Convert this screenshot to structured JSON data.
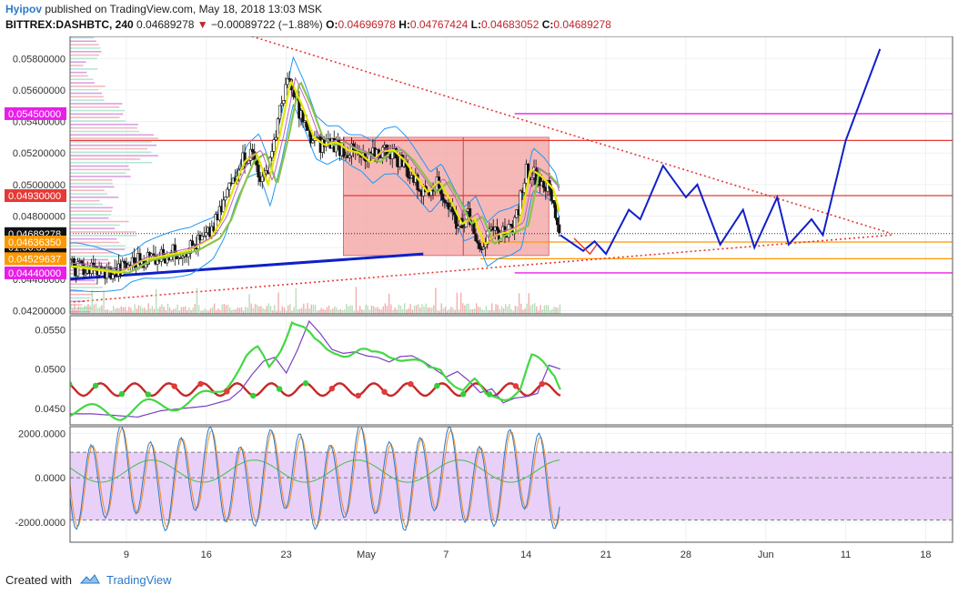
{
  "header": {
    "author": "Hyipov",
    "published": "published on TradingView.com, May 18, 2018 13:03 MSK",
    "symbol": "BITTREX:DASHBTC, 240",
    "last": "0.04689278",
    "change": "−0.00089722 (−1.88%)",
    "ohlc": [
      {
        "label": "O:",
        "value": "0.04696978"
      },
      {
        "label": "H:",
        "value": "0.04767424"
      },
      {
        "label": "L:",
        "value": "0.04683052"
      },
      {
        "label": "C:",
        "value": "0.04689278"
      }
    ]
  },
  "footer": {
    "created": "Created with",
    "brand": "TradingView"
  },
  "colors": {
    "up_candle": "#ffffff",
    "down_candle": "#111111",
    "bb": "#2196f3",
    "fast_ma": "#e6e600",
    "slow_ma": "#8bc34a",
    "magenta": "#e91ee9",
    "red": "#e53935",
    "orange": "#ff9800",
    "blue": "#1020c8",
    "zone": "#f4a0a0",
    "osc_band": "#e4c8f8"
  },
  "chart_data": [
    {
      "type": "line",
      "pane": "price",
      "x_ticks": [
        "9",
        "16",
        "23",
        "May",
        "7",
        "14",
        "21",
        "28",
        "Jun",
        "11",
        "18"
      ],
      "y_ticks": [
        "0.04200000",
        "0.04400000",
        "0.04600000",
        "0.04800000",
        "0.05000000",
        "0.05200000",
        "0.05400000",
        "0.05600000",
        "0.05800000"
      ],
      "ylim": [
        0.0418,
        0.0594
      ],
      "price_markers": [
        {
          "value": "0.05450000",
          "price": 0.0545,
          "color": "#e91ee9"
        },
        {
          "value": "0.04930000",
          "price": 0.0493,
          "color": "#e53935"
        },
        {
          "value": "0.04689278",
          "price": 0.04689,
          "color": "#111111"
        },
        {
          "value": "01:56:39",
          "price": 0.04605,
          "color": "#111111"
        },
        {
          "value": "0.04636350",
          "price": 0.04636,
          "color": "#ff9800"
        },
        {
          "value": "0.04529637",
          "price": 0.0453,
          "color": "#ff9800"
        },
        {
          "value": "0.04440000",
          "price": 0.0444,
          "color": "#e91ee9"
        }
      ],
      "close_series": [
        {
          "day": 4,
          "price": 0.0448
        },
        {
          "day": 6,
          "price": 0.0446
        },
        {
          "day": 8,
          "price": 0.0444
        },
        {
          "day": 10,
          "price": 0.0452
        },
        {
          "day": 12,
          "price": 0.0455
        },
        {
          "day": 14,
          "price": 0.0458
        },
        {
          "day": 16,
          "price": 0.0466
        },
        {
          "day": 17,
          "price": 0.0478
        },
        {
          "day": 18,
          "price": 0.0498
        },
        {
          "day": 19,
          "price": 0.0515
        },
        {
          "day": 20,
          "price": 0.052
        },
        {
          "day": 21,
          "price": 0.05
        },
        {
          "day": 22,
          "price": 0.053
        },
        {
          "day": 23,
          "price": 0.0566
        },
        {
          "day": 24,
          "price": 0.055
        },
        {
          "day": 25,
          "price": 0.053
        },
        {
          "day": 26,
          "price": 0.0525
        },
        {
          "day": 27,
          "price": 0.0527
        },
        {
          "day": 28,
          "price": 0.0522
        },
        {
          "day": 29,
          "price": 0.052
        },
        {
          "day": 30,
          "price": 0.0514
        },
        {
          "day": 31,
          "price": 0.0521
        },
        {
          "day": 32,
          "price": 0.0522
        },
        {
          "day": 33,
          "price": 0.0515
        },
        {
          "day": 34,
          "price": 0.0505
        },
        {
          "day": 35,
          "price": 0.0495
        },
        {
          "day": 36,
          "price": 0.0502
        },
        {
          "day": 37,
          "price": 0.049
        },
        {
          "day": 38,
          "price": 0.0475
        },
        {
          "day": 39,
          "price": 0.048
        },
        {
          "day": 40,
          "price": 0.0462
        },
        {
          "day": 41,
          "price": 0.0468
        },
        {
          "day": 42,
          "price": 0.047
        },
        {
          "day": 43,
          "price": 0.0474
        },
        {
          "day": 44,
          "price": 0.051
        },
        {
          "day": 45,
          "price": 0.0505
        },
        {
          "day": 46,
          "price": 0.0497
        },
        {
          "day": 47,
          "price": 0.0469
        }
      ],
      "zone": {
        "day_start": 28,
        "day_end": 46,
        "price_high": 0.053,
        "price_low": 0.0455
      },
      "h_levels": [
        {
          "price": 0.0545,
          "color": "#e91ee9",
          "day_start": 43,
          "day_end": 100
        },
        {
          "price": 0.0528,
          "color": "#e53935",
          "day_start": 0,
          "day_end": 100
        },
        {
          "price": 0.0493,
          "color": "#e53935",
          "day_start": 28,
          "day_end": 100
        },
        {
          "price": 0.04636,
          "color": "#ff9800",
          "day_start": 40,
          "day_end": 100
        },
        {
          "price": 0.0453,
          "color": "#ff9800",
          "day_start": 40,
          "day_end": 100
        },
        {
          "price": 0.0444,
          "color": "#e91ee9",
          "day_start": 43,
          "day_end": 100
        }
      ],
      "trend_lines": [
        {
          "style": "dotted",
          "color": "#e53935",
          "points": [
            {
              "day": 20,
              "price": 0.0594
            },
            {
              "day": 76,
              "price": 0.0469
            }
          ]
        },
        {
          "style": "dotted",
          "color": "#e53935",
          "points": [
            {
              "day": 0,
              "price": 0.0423
            },
            {
              "day": 76,
              "price": 0.0468
            }
          ]
        },
        {
          "style": "solid",
          "color": "#1020c8",
          "points": [
            {
              "day": 0,
              "price": 0.0438
            },
            {
              "day": 35,
              "price": 0.0456
            }
          ]
        }
      ],
      "projection": [
        {
          "day": 47,
          "price": 0.0468
        },
        {
          "day": 49,
          "price": 0.0458
        },
        {
          "day": 50,
          "price": 0.0464
        },
        {
          "day": 51,
          "price": 0.0456
        },
        {
          "day": 53,
          "price": 0.0484
        },
        {
          "day": 54,
          "price": 0.0478
        },
        {
          "day": 56,
          "price": 0.0512
        },
        {
          "day": 58,
          "price": 0.0492
        },
        {
          "day": 59,
          "price": 0.05
        },
        {
          "day": 61,
          "price": 0.0462
        },
        {
          "day": 63,
          "price": 0.0484
        },
        {
          "day": 64,
          "price": 0.046
        },
        {
          "day": 66,
          "price": 0.0492
        },
        {
          "day": 67,
          "price": 0.0462
        },
        {
          "day": 69,
          "price": 0.0478
        },
        {
          "day": 70,
          "price": 0.0468
        },
        {
          "day": 72,
          "price": 0.0528
        },
        {
          "day": 75,
          "price": 0.0586
        }
      ]
    },
    {
      "type": "line",
      "pane": "oscillator",
      "y_ticks": [
        "0.0450",
        "0.0500",
        "0.0550"
      ],
      "ylim": [
        0.0429,
        0.0568
      ]
    },
    {
      "type": "line",
      "pane": "cci",
      "y_ticks": [
        "-2000.0000",
        "0.0000",
        "2000.0000"
      ],
      "ylim": [
        -2900,
        2300
      ],
      "band": [
        -1900,
        1150
      ]
    }
  ]
}
